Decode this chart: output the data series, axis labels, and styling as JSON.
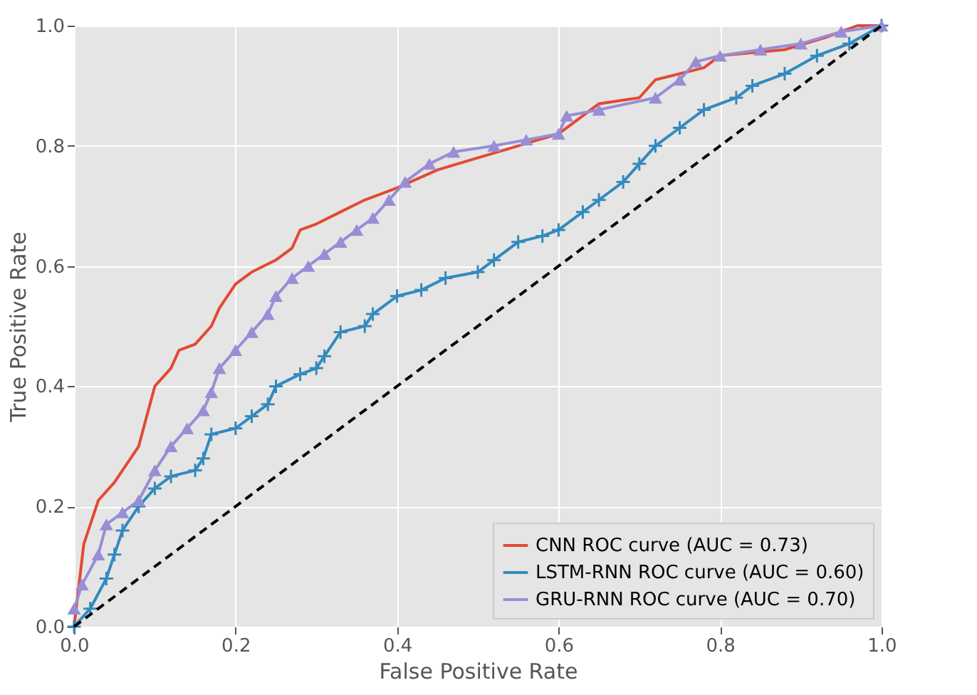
{
  "chart_data": {
    "type": "line",
    "xlabel": "False Positive Rate",
    "ylabel": "True Positive Rate",
    "xlim": [
      0.0,
      1.0
    ],
    "ylim": [
      0.0,
      1.0
    ],
    "xticks": [
      {
        "value": 0,
        "label": "0.0"
      },
      {
        "value": 0.2,
        "label": "0.2"
      },
      {
        "value": 0.4,
        "label": "0.4"
      },
      {
        "value": 0.6,
        "label": "0.6"
      },
      {
        "value": 0.8,
        "label": "0.8"
      },
      {
        "value": 1,
        "label": "1.0"
      }
    ],
    "yticks": [
      {
        "value": 0,
        "label": "0.0"
      },
      {
        "value": 0.2,
        "label": "0.2"
      },
      {
        "value": 0.4,
        "label": "0.4"
      },
      {
        "value": 0.6,
        "label": "0.6"
      },
      {
        "value": 0.8,
        "label": "0.8"
      },
      {
        "value": 1,
        "label": "1.0"
      }
    ],
    "grid": true,
    "legend": "bottom right",
    "series": [
      {
        "name": "CNN ROC curve (AUC = 0.73)",
        "color": "#e24a33",
        "marker": "none",
        "x": [
          0,
          0.012,
          0.03,
          0.05,
          0.08,
          0.09,
          0.1,
          0.12,
          0.13,
          0.15,
          0.17,
          0.18,
          0.2,
          0.22,
          0.25,
          0.27,
          0.28,
          0.3,
          0.33,
          0.36,
          0.4,
          0.45,
          0.5,
          0.55,
          0.6,
          0.62,
          0.65,
          0.7,
          0.72,
          0.78,
          0.8,
          0.88,
          0.93,
          0.97,
          1
        ],
        "values": [
          0,
          0.137,
          0.21,
          0.24,
          0.3,
          0.35,
          0.4,
          0.43,
          0.46,
          0.47,
          0.5,
          0.53,
          0.57,
          0.59,
          0.61,
          0.63,
          0.66,
          0.67,
          0.69,
          0.71,
          0.73,
          0.76,
          0.78,
          0.8,
          0.82,
          0.84,
          0.87,
          0.88,
          0.91,
          0.93,
          0.95,
          0.96,
          0.98,
          1.0,
          1.0
        ]
      },
      {
        "name": "LSTM-RNN ROC curve (AUC = 0.60)",
        "color": "#348abd",
        "marker": "cross",
        "x": [
          0,
          0.02,
          0.04,
          0.05,
          0.06,
          0.08,
          0.1,
          0.12,
          0.15,
          0.16,
          0.17,
          0.2,
          0.22,
          0.24,
          0.25,
          0.28,
          0.3,
          0.31,
          0.33,
          0.36,
          0.37,
          0.4,
          0.43,
          0.46,
          0.5,
          0.52,
          0.55,
          0.58,
          0.6,
          0.63,
          0.65,
          0.68,
          0.7,
          0.72,
          0.75,
          0.78,
          0.82,
          0.84,
          0.88,
          0.92,
          0.96,
          1
        ],
        "values": [
          0,
          0.03,
          0.08,
          0.12,
          0.16,
          0.2,
          0.23,
          0.25,
          0.26,
          0.28,
          0.32,
          0.33,
          0.35,
          0.37,
          0.4,
          0.42,
          0.43,
          0.45,
          0.49,
          0.5,
          0.52,
          0.55,
          0.56,
          0.58,
          0.59,
          0.61,
          0.64,
          0.65,
          0.66,
          0.69,
          0.71,
          0.74,
          0.77,
          0.8,
          0.83,
          0.86,
          0.88,
          0.9,
          0.92,
          0.95,
          0.97,
          1.0
        ]
      },
      {
        "name": "GRU-RNN ROC curve (AUC = 0.70)",
        "color": "#988ed5",
        "marker": "triangle",
        "x": [
          0,
          0.01,
          0.03,
          0.04,
          0.06,
          0.08,
          0.1,
          0.12,
          0.14,
          0.16,
          0.17,
          0.18,
          0.2,
          0.22,
          0.24,
          0.25,
          0.27,
          0.29,
          0.31,
          0.33,
          0.35,
          0.37,
          0.39,
          0.41,
          0.44,
          0.47,
          0.52,
          0.56,
          0.6,
          0.61,
          0.65,
          0.72,
          0.75,
          0.77,
          0.8,
          0.85,
          0.9,
          0.95,
          1
        ],
        "values": [
          0.03,
          0.07,
          0.12,
          0.17,
          0.19,
          0.21,
          0.26,
          0.3,
          0.33,
          0.36,
          0.39,
          0.43,
          0.46,
          0.49,
          0.52,
          0.55,
          0.58,
          0.6,
          0.62,
          0.64,
          0.66,
          0.68,
          0.71,
          0.74,
          0.77,
          0.79,
          0.8,
          0.81,
          0.82,
          0.85,
          0.86,
          0.88,
          0.91,
          0.94,
          0.95,
          0.96,
          0.97,
          0.99,
          1.0
        ]
      },
      {
        "color": "#000000",
        "line_style": "dashed",
        "marker": "none",
        "x": [
          0,
          1
        ],
        "values": [
          0,
          1
        ]
      }
    ]
  }
}
